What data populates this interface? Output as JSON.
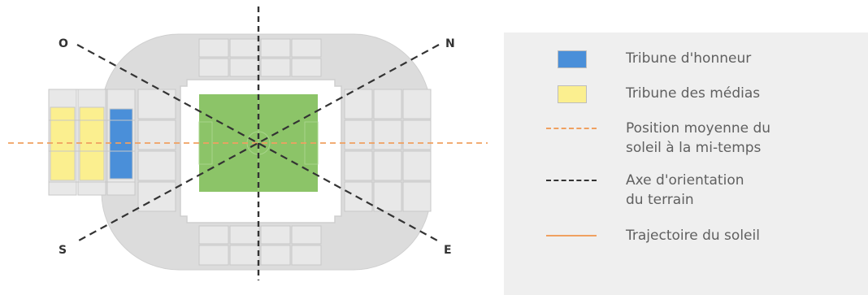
{
  "diagram": {
    "compass": {
      "north": "N",
      "east": "E",
      "south": "S",
      "west": "O"
    },
    "colors": {
      "stand": "#dcdcdc",
      "stand_cell": "#e8e8e8",
      "stand_outline": "#c7c7c7",
      "pitch": "#8cc468",
      "honour_stand": "#4a8fd9",
      "media_stand": "#fbef8f",
      "sun_position_line": "#f0a060",
      "pitch_axis_line": "#333333",
      "sun_path_line": "#f0a060"
    }
  },
  "legend": {
    "items": [
      {
        "type": "swatch",
        "color": "#4a8fd9",
        "label": "Tribune d'honneur"
      },
      {
        "type": "swatch",
        "color": "#fbef8f",
        "label": "Tribune des médias"
      },
      {
        "type": "dashed-line",
        "color": "#f0a060",
        "label": "Position moyenne du\nsoleil à la mi-temps"
      },
      {
        "type": "dashed-line",
        "color": "#333333",
        "label": "Axe d'orientation\ndu terrain"
      },
      {
        "type": "solid-line",
        "color": "#f0a060",
        "label": "Trajectoire du soleil"
      }
    ]
  }
}
